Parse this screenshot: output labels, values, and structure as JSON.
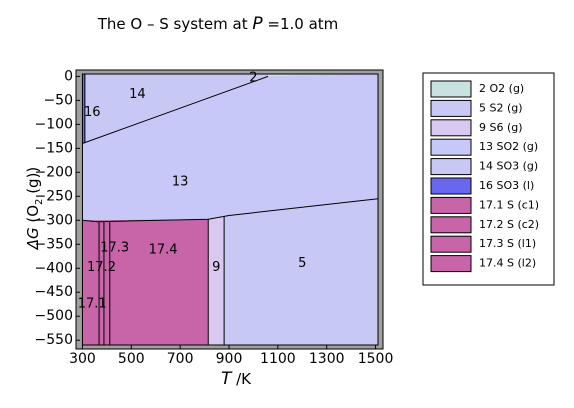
{
  "chart_data": {
    "type": "area",
    "title": {
      "prefix": "The O – S system at ",
      "var": "P",
      "suffix": " =1.0 atm"
    },
    "xlabel": {
      "var": "T",
      "unit": " /K"
    },
    "ylabel": {
      "var": "ΔG",
      "text": " (O",
      "sub": "2",
      "end": " (g))"
    },
    "xlim": [
      290,
      1510
    ],
    "ylim": [
      -560,
      5
    ],
    "x_ticks": [
      300,
      500,
      700,
      900,
      1100,
      1300,
      1500
    ],
    "y_ticks": [
      0,
      -50,
      -100,
      -150,
      -200,
      -250,
      -300,
      -350,
      -400,
      -450,
      -500,
      -550
    ],
    "grid": false,
    "legend_position": "right",
    "boundaries": {
      "upper_line": [
        [
          300,
          -140
        ],
        [
          1060,
          0
        ]
      ],
      "so3_liquid_x": 310,
      "lower_line": [
        [
          300,
          -300
        ],
        [
          360,
          -303
        ],
        [
          815,
          -298
        ],
        [
          900,
          -290
        ],
        [
          1510,
          -255
        ]
      ],
      "solid_right_x": 815,
      "s6_right_x": 880,
      "solid_dividers_x": [
        368,
        388,
        412
      ]
    },
    "series": [
      {
        "id": "2",
        "name": "O2 (g)",
        "color": "#c8e2e2",
        "label_at": [
          1000,
          -3
        ]
      },
      {
        "id": "5",
        "name": "S2 (g)",
        "color": "#c8c8f5",
        "label_at": [
          1200,
          -390
        ]
      },
      {
        "id": "9",
        "name": "S6 (g)",
        "color": "#d9c8ef",
        "label_at": [
          848,
          -398
        ]
      },
      {
        "id": "13",
        "name": "SO2 (g)",
        "color": "#c8c8f8",
        "label_at": [
          700,
          -220
        ]
      },
      {
        "id": "14",
        "name": "SO3 (g)",
        "color": "#c8c8f5",
        "label_at": [
          525,
          -38
        ]
      },
      {
        "id": "16",
        "name": "SO3 (l)",
        "color": "#6868ee",
        "label_at": [
          340,
          -75
        ]
      },
      {
        "id": "17.1",
        "name": "S (c1)",
        "color": "#c864a8",
        "label_at": [
          340,
          -474
        ]
      },
      {
        "id": "17.2",
        "name": "S (c2)",
        "color": "#c864a8",
        "label_at": [
          378,
          -398
        ]
      },
      {
        "id": "17.3",
        "name": "S (l1)",
        "color": "#c864a8",
        "label_at": [
          432,
          -358
        ]
      },
      {
        "id": "17.4",
        "name": "S (l2)",
        "color": "#c864a8",
        "label_at": [
          630,
          -362
        ]
      }
    ]
  }
}
